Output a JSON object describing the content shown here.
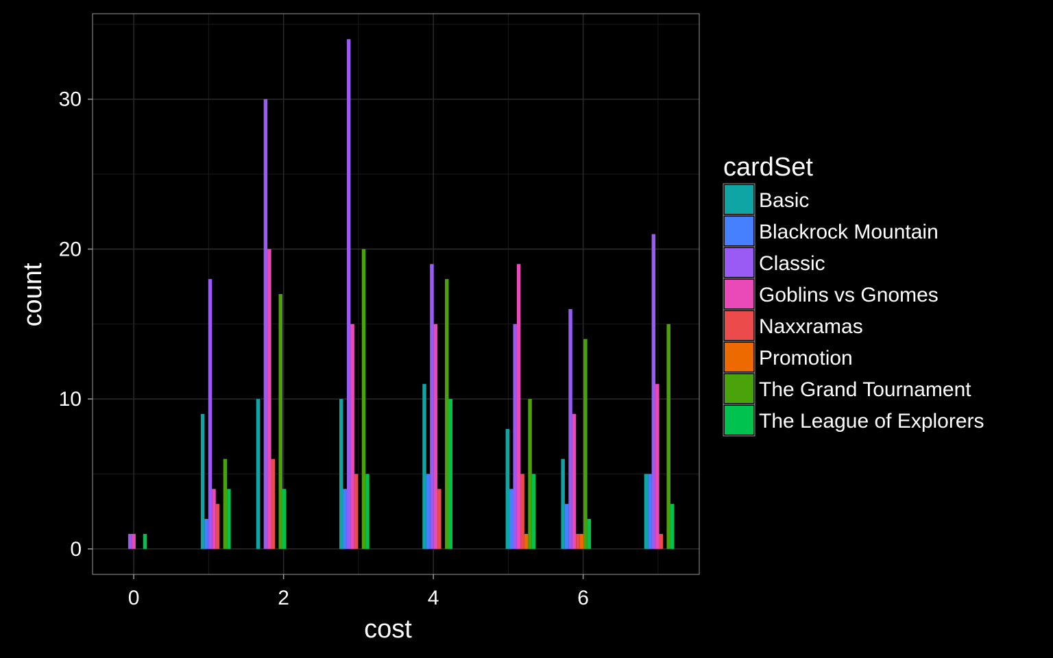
{
  "chart_data": {
    "type": "bar",
    "xlabel": "cost",
    "ylabel": "count",
    "legend_title": "cardSet",
    "legend_position": "right",
    "grid": true,
    "xlim": [
      -0.55,
      7.55
    ],
    "ylim": [
      -1.7,
      35.7
    ],
    "x_ticks": [
      0,
      2,
      4,
      6
    ],
    "y_ticks": [
      0,
      10,
      20,
      30
    ],
    "series": [
      {
        "name": "Basic",
        "color": "#0FA5A5",
        "points": [
          [
            0.92,
            9
          ],
          [
            1.66,
            10
          ],
          [
            2.77,
            10
          ],
          [
            3.88,
            11
          ],
          [
            4.99,
            8
          ],
          [
            5.73,
            6
          ],
          [
            6.84,
            5
          ]
        ]
      },
      {
        "name": "Blackrock Mountain",
        "color": "#4680FF",
        "points": [
          [
            0.97,
            2
          ],
          [
            2.82,
            4
          ],
          [
            3.93,
            5
          ],
          [
            5.04,
            4
          ],
          [
            5.78,
            3
          ],
          [
            6.89,
            5
          ]
        ]
      },
      {
        "name": "Classic",
        "color": "#9A5BF5",
        "points": [
          [
            -0.05,
            1
          ],
          [
            1.02,
            18
          ],
          [
            1.76,
            30
          ],
          [
            2.87,
            34
          ],
          [
            3.98,
            19
          ],
          [
            5.09,
            15
          ],
          [
            5.83,
            16
          ],
          [
            6.94,
            21
          ]
        ]
      },
      {
        "name": "Goblins vs Gnomes",
        "color": "#E94AB8",
        "points": [
          [
            0.0,
            1
          ],
          [
            1.07,
            4
          ],
          [
            1.81,
            20
          ],
          [
            2.92,
            15
          ],
          [
            4.03,
            15
          ],
          [
            5.14,
            19
          ],
          [
            5.88,
            9
          ],
          [
            6.99,
            11
          ]
        ]
      },
      {
        "name": "Naxxramas",
        "color": "#EB4B4B",
        "points": [
          [
            1.12,
            3
          ],
          [
            1.86,
            6
          ],
          [
            2.97,
            5
          ],
          [
            4.08,
            4
          ],
          [
            5.19,
            5
          ],
          [
            5.93,
            1
          ],
          [
            7.04,
            1
          ]
        ]
      },
      {
        "name": "Promotion",
        "color": "#ED6A00",
        "points": [
          [
            5.24,
            1
          ],
          [
            5.98,
            1
          ]
        ]
      },
      {
        "name": "The Grand Tournament",
        "color": "#4AA30A",
        "points": [
          [
            1.22,
            6
          ],
          [
            1.96,
            17
          ],
          [
            3.07,
            20
          ],
          [
            4.18,
            18
          ],
          [
            5.29,
            10
          ],
          [
            6.03,
            14
          ],
          [
            7.14,
            15
          ]
        ]
      },
      {
        "name": "The League of Explorers",
        "color": "#00C24E",
        "points": [
          [
            0.15,
            1
          ],
          [
            1.27,
            4
          ],
          [
            2.01,
            4
          ],
          [
            3.12,
            5
          ],
          [
            4.23,
            10
          ],
          [
            5.34,
            5
          ],
          [
            6.08,
            2
          ],
          [
            7.19,
            3
          ]
        ]
      }
    ]
  }
}
